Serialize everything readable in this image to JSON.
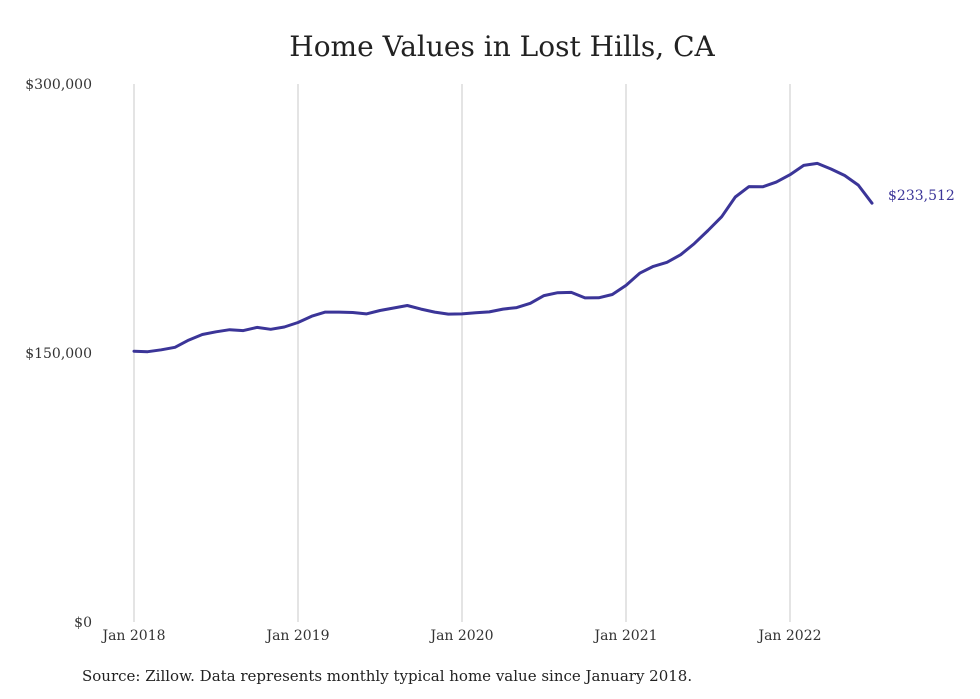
{
  "title": "Home Values in Lost Hills, CA",
  "source": "Source: Zillow. Data represents monthly typical home value since January 2018.",
  "colors": {
    "line": "#3b3598",
    "grid": "#c8c8c8",
    "end_label": "#3b3598"
  },
  "chart_data": {
    "type": "line",
    "title": "Home Values in Lost Hills, CA",
    "xlabel": "",
    "ylabel": "",
    "ylim": [
      0,
      300000
    ],
    "y_ticks": [
      {
        "value": 0,
        "label": "$0"
      },
      {
        "value": 150000,
        "label": "$150,000"
      },
      {
        "value": 300000,
        "label": "$300,000"
      }
    ],
    "x_ticks": [
      {
        "value": "2018-01",
        "label": "Jan 2018"
      },
      {
        "value": "2019-01",
        "label": "Jan 2019"
      },
      {
        "value": "2020-01",
        "label": "Jan 2020"
      },
      {
        "value": "2021-01",
        "label": "Jan 2021"
      },
      {
        "value": "2022-01",
        "label": "Jan 2022"
      }
    ],
    "grid": "vertical",
    "end_label": "$233,512",
    "x": [
      "2018-01",
      "2018-02",
      "2018-03",
      "2018-04",
      "2018-05",
      "2018-06",
      "2018-07",
      "2018-08",
      "2018-09",
      "2018-10",
      "2018-11",
      "2018-12",
      "2019-01",
      "2019-02",
      "2019-03",
      "2019-04",
      "2019-05",
      "2019-06",
      "2019-07",
      "2019-08",
      "2019-09",
      "2019-10",
      "2019-11",
      "2019-12",
      "2020-01",
      "2020-02",
      "2020-03",
      "2020-04",
      "2020-05",
      "2020-06",
      "2020-07",
      "2020-08",
      "2020-09",
      "2020-10",
      "2020-11",
      "2020-12",
      "2021-01",
      "2021-02",
      "2021-03",
      "2021-04",
      "2021-05",
      "2021-06",
      "2021-07",
      "2021-08",
      "2021-09",
      "2021-10",
      "2021-11",
      "2021-12",
      "2022-01",
      "2022-02",
      "2022-03",
      "2022-04",
      "2022-05",
      "2022-06",
      "2022-07"
    ],
    "series": [
      {
        "values": [
          151000,
          150700,
          151800,
          153200,
          157200,
          160300,
          161800,
          163000,
          162500,
          164300,
          163200,
          164500,
          167000,
          170500,
          172800,
          172800,
          172600,
          171800,
          173700,
          175100,
          176500,
          174500,
          172800,
          171700,
          171800,
          172500,
          172900,
          174500,
          175300,
          177700,
          182000,
          183600,
          183800,
          180700,
          180800,
          182600,
          187700,
          194500,
          198300,
          200600,
          204800,
          211000,
          218300,
          226000,
          237000,
          242800,
          242700,
          245300,
          249400,
          254600,
          255700,
          252600,
          249000,
          243600,
          233512
        ]
      }
    ]
  }
}
